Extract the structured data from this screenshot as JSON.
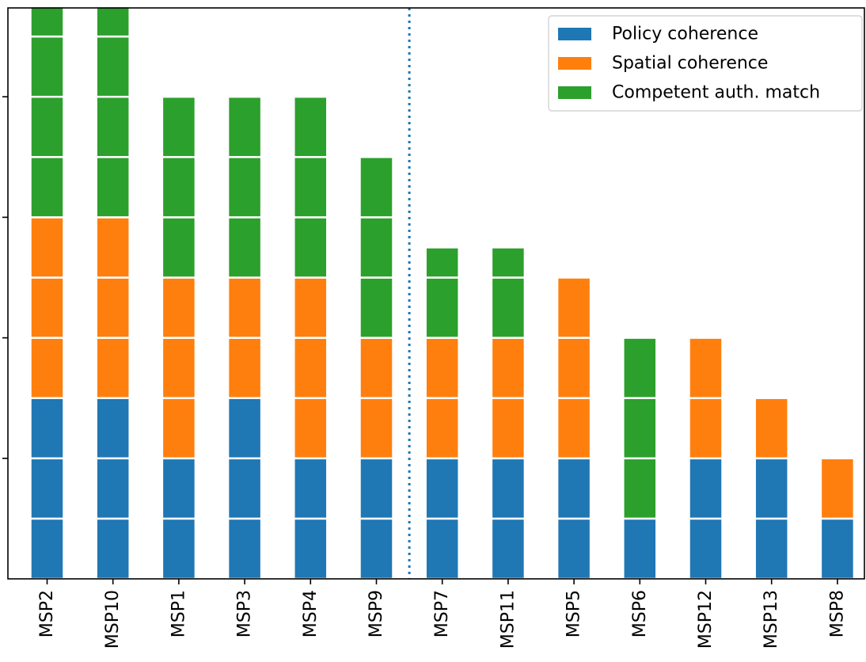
{
  "chart_data": {
    "type": "bar",
    "stacked": true,
    "categories": [
      "MSP2",
      "MSP10",
      "MSP1",
      "MSP3",
      "MSP4",
      "MSP9",
      "MSP7",
      "MSP11",
      "MSP5",
      "MSP6",
      "MSP12",
      "MSP13",
      "MSP8"
    ],
    "series": [
      {
        "name": "Policy coherence",
        "color": "#1f77b4",
        "values": [
          3,
          3,
          2,
          3,
          2,
          2,
          2,
          2,
          2,
          1,
          2,
          2,
          1
        ]
      },
      {
        "name": "Spatial coherence",
        "color": "#ff7f0e",
        "values": [
          3,
          3,
          3,
          2,
          3,
          2,
          2,
          2,
          3,
          0,
          2,
          1,
          1
        ]
      },
      {
        "name": "Competent auth. match",
        "color": "#2ca02c",
        "values": [
          3.5,
          3.5,
          3,
          3,
          3,
          3,
          1.5,
          1.5,
          0,
          3,
          0,
          0,
          0
        ]
      }
    ],
    "ylim": [
      0,
      9.5
    ],
    "yticks": [
      2,
      4,
      6,
      8
    ],
    "y_tick_labels_shown": false,
    "divider_after_index": 5,
    "legend_position": "top-right",
    "grid": false
  }
}
